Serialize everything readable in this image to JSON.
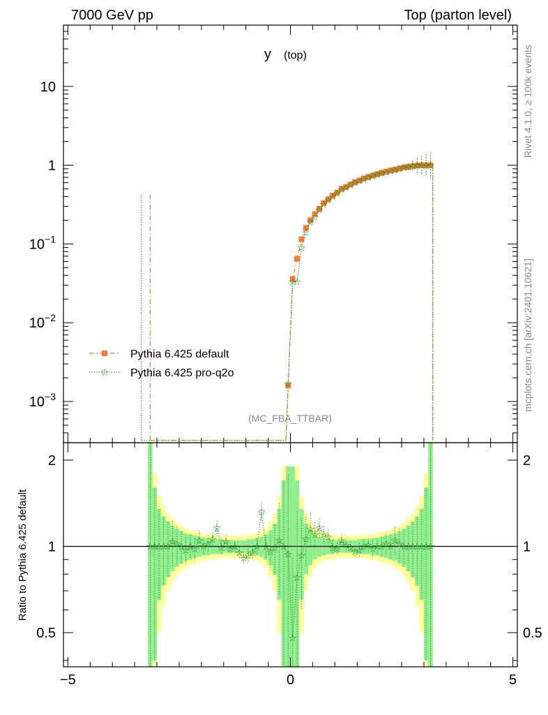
{
  "header": {
    "left": "7000 GeV pp",
    "right": "Top (parton level)"
  },
  "side_labels": {
    "rivet": "Rivet 4.1.0, ≥ 100k events",
    "mcplots": "mcplots.cern.ch [arXiv:2401.10621]"
  },
  "chart_data": [
    {
      "type": "line",
      "panel": "main",
      "title": "y",
      "title_sub": "(top)",
      "watermark": "(MC_FBA_TTBAR)",
      "yscale": "log",
      "xlim": [
        -5.1,
        5.1
      ],
      "ylim": [
        0.0003,
        60
      ],
      "ytick_labels": [
        {
          "value": 10,
          "base": "10",
          "exp": ""
        },
        {
          "value": 1,
          "base": "1",
          "exp": ""
        },
        {
          "value": 0.1,
          "base": "10",
          "exp": "−1"
        },
        {
          "value": 0.01,
          "base": "10",
          "exp": "−2"
        },
        {
          "value": 0.001,
          "base": "10",
          "exp": "−3"
        }
      ],
      "series": [
        {
          "name": "Pythia 6.425 default",
          "color": "#f47f30",
          "marker": "square",
          "x": [
            -0.05,
            0.05,
            0.15,
            0.25,
            0.35,
            0.45,
            0.55,
            0.65,
            0.75,
            0.85,
            0.95,
            1.05,
            1.15,
            1.25,
            1.35,
            1.45,
            1.55,
            1.65,
            1.75,
            1.85,
            1.95,
            2.05,
            2.15,
            2.25,
            2.35,
            2.45,
            2.55,
            2.65,
            2.75,
            2.85,
            2.95,
            3.05,
            3.15
          ],
          "y": [
            0.0016,
            0.036,
            0.065,
            0.115,
            0.16,
            0.2,
            0.24,
            0.28,
            0.33,
            0.37,
            0.41,
            0.45,
            0.5,
            0.53,
            0.57,
            0.61,
            0.64,
            0.68,
            0.71,
            0.74,
            0.77,
            0.8,
            0.83,
            0.86,
            0.88,
            0.91,
            0.94,
            0.96,
            0.98,
            0.99,
            1.0,
            1.0,
            1.0
          ]
        },
        {
          "name": "Pythia 6.425 pro-q2o",
          "color": "#2ca02c",
          "marker": "star",
          "x": [
            -0.05,
            0.05,
            0.15,
            0.25,
            0.35,
            0.45,
            0.55,
            0.65,
            0.75,
            0.85,
            0.95,
            1.05,
            1.15,
            1.25,
            1.35,
            1.45,
            1.55,
            1.65,
            1.75,
            1.85,
            1.95,
            2.05,
            2.15,
            2.25,
            2.35,
            2.45,
            2.55,
            2.65,
            2.75,
            2.85,
            2.95,
            3.05,
            3.15
          ],
          "y": [
            0.0017,
            0.033,
            0.033,
            0.09,
            0.14,
            0.19,
            0.22,
            0.27,
            0.32,
            0.36,
            0.4,
            0.44,
            0.49,
            0.52,
            0.56,
            0.6,
            0.63,
            0.66,
            0.7,
            0.73,
            0.76,
            0.79,
            0.82,
            0.84,
            0.87,
            0.9,
            0.93,
            0.95,
            0.97,
            0.99,
            1.0,
            1.0,
            1.0
          ]
        }
      ]
    },
    {
      "type": "line",
      "panel": "ratio",
      "ylabel": "Ratio to Pythia 6.425 default",
      "yscale": "log",
      "xlim": [
        -5.1,
        5.1
      ],
      "ylim": [
        0.38,
        2.3
      ],
      "xticks": [
        -5,
        0,
        5
      ],
      "xtick_labels": [
        "−5",
        "0",
        "5"
      ],
      "yticks": [
        0.5,
        1,
        2
      ],
      "ytick_labels": [
        "0.5",
        "1",
        "2"
      ],
      "x": [
        -3.15,
        -3.05,
        -2.95,
        -2.85,
        -2.75,
        -2.65,
        -2.55,
        -2.45,
        -2.35,
        -2.25,
        -2.15,
        -2.05,
        -1.95,
        -1.85,
        -1.75,
        -1.65,
        -1.55,
        -1.45,
        -1.35,
        -1.25,
        -1.15,
        -1.05,
        -0.95,
        -0.85,
        -0.75,
        -0.65,
        -0.55,
        -0.45,
        -0.35,
        -0.25,
        -0.15,
        -0.05,
        0.05,
        0.15,
        0.25,
        0.35,
        0.45,
        0.55,
        0.65,
        0.75,
        0.85,
        0.95,
        1.05,
        1.15,
        1.25,
        1.35,
        1.45,
        1.55,
        1.65,
        1.75,
        1.85,
        1.95,
        2.05,
        2.15,
        2.25,
        2.35,
        2.45,
        2.55,
        2.65,
        2.75,
        2.85,
        2.95,
        3.05,
        3.15
      ],
      "ratio_values": [
        1.0,
        1.0,
        1.0,
        1.0,
        1.0,
        1.04,
        1.02,
        1.0,
        0.97,
        1.0,
        0.98,
        1.05,
        1.0,
        1.02,
        1.06,
        1.16,
        0.99,
        1.04,
        0.98,
        1.0,
        0.95,
        0.91,
        0.93,
        0.95,
        1.0,
        1.32,
        1.0,
        0.96,
        0.99,
        1.05,
        1.0,
        0.94,
        0.48,
        0.78,
        0.93,
        1.06,
        1.15,
        1.1,
        1.16,
        1.1,
        1.08,
        0.99,
        0.98,
        1.05,
        1.01,
        0.99,
        0.96,
        0.97,
        1.0,
        1.01,
        0.98,
        1.0,
        1.0,
        1.02,
        1.0,
        1.05,
        1.02,
        1.0,
        1.0,
        1.0,
        1.0,
        1.0,
        1.0,
        1.0
      ],
      "band_inner_halfwidth": [
        1.3,
        0.6,
        0.35,
        0.27,
        0.22,
        0.18,
        0.15,
        0.13,
        0.11,
        0.1,
        0.09,
        0.08,
        0.07,
        0.07,
        0.06,
        0.06,
        0.06,
        0.05,
        0.05,
        0.05,
        0.05,
        0.05,
        0.06,
        0.06,
        0.07,
        0.08,
        0.1,
        0.14,
        0.2,
        0.35,
        0.7,
        0.9,
        0.9,
        0.7,
        0.35,
        0.2,
        0.14,
        0.1,
        0.08,
        0.07,
        0.06,
        0.06,
        0.05,
        0.05,
        0.05,
        0.05,
        0.05,
        0.06,
        0.06,
        0.06,
        0.07,
        0.07,
        0.08,
        0.09,
        0.1,
        0.11,
        0.13,
        0.15,
        0.18,
        0.22,
        0.27,
        0.35,
        0.6,
        1.3
      ],
      "band_outer_halfwidth": [
        1.3,
        0.8,
        0.5,
        0.38,
        0.3,
        0.25,
        0.21,
        0.18,
        0.16,
        0.14,
        0.13,
        0.12,
        0.11,
        0.1,
        0.1,
        0.09,
        0.09,
        0.09,
        0.09,
        0.09,
        0.09,
        0.09,
        0.1,
        0.1,
        0.11,
        0.13,
        0.16,
        0.22,
        0.3,
        0.5,
        0.9,
        0.9,
        0.9,
        0.9,
        0.5,
        0.3,
        0.22,
        0.16,
        0.13,
        0.11,
        0.1,
        0.1,
        0.09,
        0.09,
        0.09,
        0.09,
        0.09,
        0.09,
        0.09,
        0.1,
        0.1,
        0.11,
        0.12,
        0.13,
        0.14,
        0.16,
        0.18,
        0.21,
        0.25,
        0.3,
        0.38,
        0.5,
        0.8,
        1.3
      ],
      "band_inner_color": "#90ee90",
      "band_outer_color": "#ffff99",
      "reference_line": 1
    }
  ]
}
